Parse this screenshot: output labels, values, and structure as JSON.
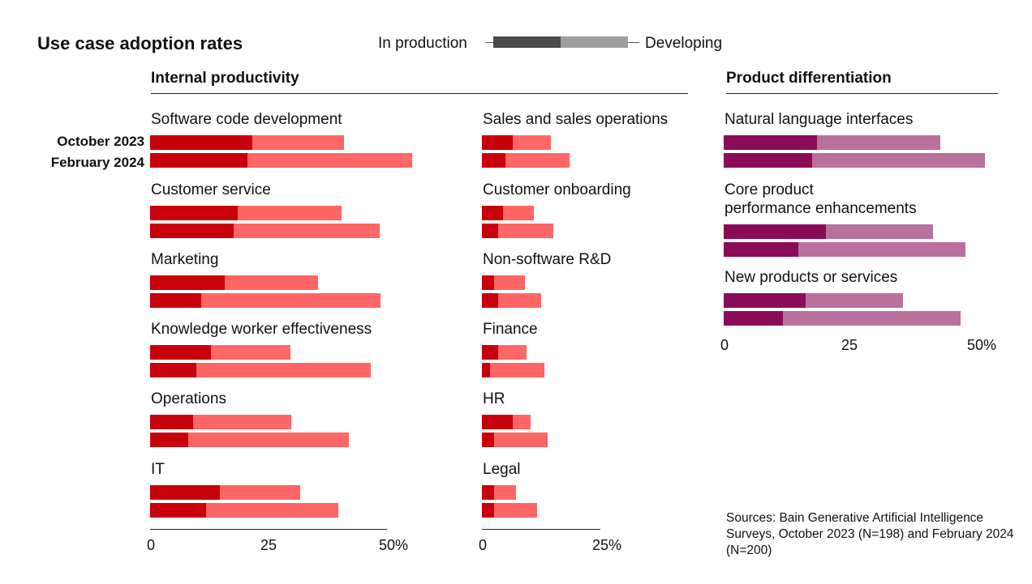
{
  "title": "Use case adoption rates",
  "legend": {
    "in_production": "In production",
    "developing": "Developing"
  },
  "row_labels": {
    "first": "October 2023",
    "second": "February 2024"
  },
  "colors": {
    "internal_production": "#c8000a",
    "internal_developing": "#ff6666",
    "product_production": "#8a0c58",
    "product_developing": "#b8709c",
    "legend_production": "#4a4a4a",
    "legend_developing": "#9e9e9e"
  },
  "source": "Sources: Bain Generative Artificial Intelligence Surveys, October 2023 (N=198) and February 2024 (N=200)",
  "chart_data": [
    {
      "type": "bar",
      "title": "Internal productivity",
      "panel": "internal-left",
      "xlim": [
        0,
        50
      ],
      "ticks": [
        "0",
        "25",
        "50%"
      ],
      "tick_values": [
        0,
        25,
        50
      ],
      "stacking": "production + developing (total adoption)",
      "categories": [
        "Software code development",
        "Customer service",
        "Marketing",
        "Knowledge worker effectiveness",
        "Operations",
        "IT"
      ],
      "series": [
        {
          "period": "October 2023",
          "production": [
            21.5,
            18.5,
            15.8,
            12.8,
            9,
            14.8
          ],
          "developing": [
            19.5,
            21.9,
            19.7,
            16.9,
            20.8,
            16.9
          ]
        },
        {
          "period": "February 2024",
          "production": [
            20.5,
            17.6,
            10.8,
            9.8,
            8,
            11.8
          ],
          "developing": [
            34.8,
            30.9,
            37.9,
            36.7,
            33.9,
            28
          ]
        }
      ]
    },
    {
      "type": "bar",
      "title": "Internal productivity",
      "panel": "internal-right",
      "xlim": [
        0,
        25
      ],
      "ticks": [
        "0",
        "25%"
      ],
      "tick_values": [
        0,
        25
      ],
      "stacking": "production + developing (total adoption)",
      "categories": [
        "Sales and sales operations",
        "Customer onboarding",
        "Non-software R&D",
        "Finance",
        "HR",
        "Legal"
      ],
      "series": [
        {
          "period": "October 2023",
          "production": [
            6.5,
            4.5,
            2.6,
            3.5,
            6.5,
            2.6
          ],
          "developing": [
            8,
            6.5,
            6.5,
            6,
            3.8,
            4.6
          ]
        },
        {
          "period": "February 2024",
          "production": [
            5,
            3.5,
            3.5,
            1.7,
            2.6,
            2.6
          ],
          "developing": [
            13.5,
            11.5,
            9,
            11.5,
            11.2,
            9
          ]
        }
      ]
    },
    {
      "type": "bar",
      "title": "Product differentiation",
      "panel": "product",
      "xlim": [
        0,
        50
      ],
      "ticks": [
        "0",
        "25",
        "50%"
      ],
      "tick_values": [
        0,
        25,
        50
      ],
      "stacking": "production + developing (total adoption)",
      "categories": [
        "Natural language interfaces",
        "Core product performance enhancements",
        "New products or services"
      ],
      "category_lines": [
        [
          "Natural language interfaces"
        ],
        [
          "Core product",
          "performance enhancements"
        ],
        [
          "New products or services"
        ]
      ],
      "series": [
        {
          "period": "October 2023",
          "production": [
            18.5,
            20.3,
            16.3
          ],
          "developing": [
            24.6,
            21.3,
            19.3
          ]
        },
        {
          "period": "February 2024",
          "production": [
            17.6,
            14.8,
            11.8
          ],
          "developing": [
            34.4,
            33.3,
            35.3
          ]
        }
      ]
    }
  ]
}
